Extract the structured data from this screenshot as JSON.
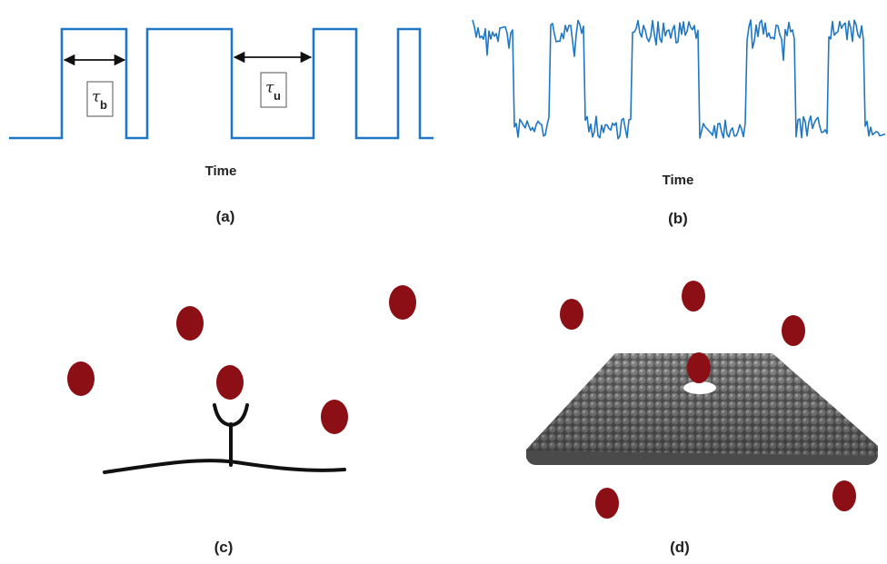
{
  "panels": {
    "a": {
      "caption": "(a)",
      "xlabel": "Time",
      "tau_bound": {
        "symbol": "τ",
        "subscript": "b"
      },
      "tau_unbound": {
        "symbol": "τ",
        "subscript": "u"
      }
    },
    "b": {
      "caption": "(b)",
      "xlabel": "Time"
    },
    "c": {
      "caption": "(c)"
    },
    "d": {
      "caption": "(d)"
    }
  },
  "colors": {
    "trace": "#1f77c4",
    "particle": "#8b0f14",
    "receptor": "#111111",
    "membrane": "#6a6a6a",
    "text": "#222222"
  },
  "icons": {
    "particle": "circle",
    "receptor": "y-shape"
  }
}
